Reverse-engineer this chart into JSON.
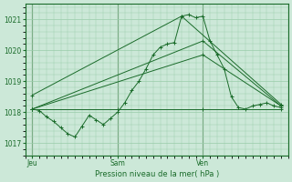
{
  "title": "Pression niveau de la mer( hPa )",
  "bg_color": "#cce8d8",
  "grid_color": "#99ccaa",
  "line_color": "#1a6b2a",
  "marker_color": "#1a6b2a",
  "ylim": [
    1016.6,
    1021.5
  ],
  "yticks": [
    1017,
    1018,
    1019,
    1020,
    1021
  ],
  "xtick_labels": [
    "Jeu",
    "Sam",
    "Ven"
  ],
  "xtick_pos": [
    0,
    12,
    24
  ],
  "xlim": [
    -1,
    36
  ],
  "vlines": [
    0,
    12,
    24
  ],
  "series": [
    {
      "x": [
        0,
        1,
        2,
        3,
        4,
        5,
        6,
        7,
        8,
        9,
        10,
        11,
        12,
        13,
        14,
        15,
        16,
        17,
        18,
        19,
        20,
        21,
        22,
        23,
        24,
        25,
        26,
        27,
        28,
        29,
        30,
        31,
        32,
        33,
        34,
        35
      ],
      "y": [
        1018.1,
        1018.05,
        1017.85,
        1017.7,
        1017.5,
        1017.3,
        1017.2,
        1017.55,
        1017.9,
        1017.75,
        1017.6,
        1017.8,
        1018.0,
        1018.3,
        1018.7,
        1019.0,
        1019.4,
        1019.85,
        1020.1,
        1020.2,
        1020.25,
        1021.1,
        1021.15,
        1021.05,
        1021.1,
        1020.3,
        1019.85,
        1019.4,
        1018.5,
        1018.15,
        1018.1,
        1018.2,
        1018.25,
        1018.3,
        1018.2,
        1018.15
      ]
    },
    {
      "x": [
        0,
        21,
        35
      ],
      "y": [
        1018.55,
        1021.1,
        1018.25
      ]
    },
    {
      "x": [
        0,
        24,
        35
      ],
      "y": [
        1018.1,
        1020.3,
        1018.2
      ]
    },
    {
      "x": [
        0,
        24,
        35
      ],
      "y": [
        1018.1,
        1019.85,
        1018.2
      ]
    },
    {
      "x": [
        0,
        12,
        24,
        35
      ],
      "y": [
        1018.1,
        1018.1,
        1018.1,
        1018.1
      ]
    }
  ]
}
